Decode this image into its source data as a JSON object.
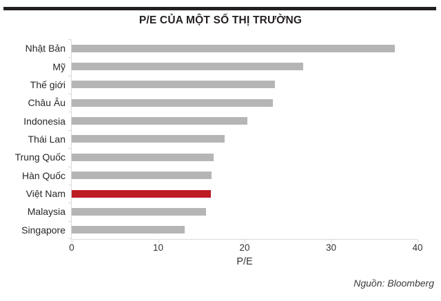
{
  "chart_data": {
    "type": "bar",
    "orientation": "horizontal",
    "title": "P/E CỦA MỘT SỐ THỊ TRƯỜNG",
    "categories": [
      "Nhật Bản",
      "Mỹ",
      "Thế giới",
      "Châu Âu",
      "Indonesia",
      "Thái Lan",
      "Trung Quốc",
      "Hàn Quốc",
      "Việt Nam",
      "Malaysia",
      "Singapore"
    ],
    "values": [
      37.4,
      26.8,
      23.5,
      23.3,
      20.3,
      17.7,
      16.4,
      16.2,
      16.1,
      15.5,
      13.1
    ],
    "xlabel": "P/E",
    "ylabel": "",
    "xlim": [
      0,
      40
    ],
    "xticks": [
      "0",
      "10",
      "20",
      "30",
      "40"
    ],
    "grid": false,
    "legend": "none",
    "highlight_index": 8,
    "bar_color": "#b5b5b5",
    "highlight_color": "#be1c23",
    "source": "Nguồn: Bloomberg"
  }
}
